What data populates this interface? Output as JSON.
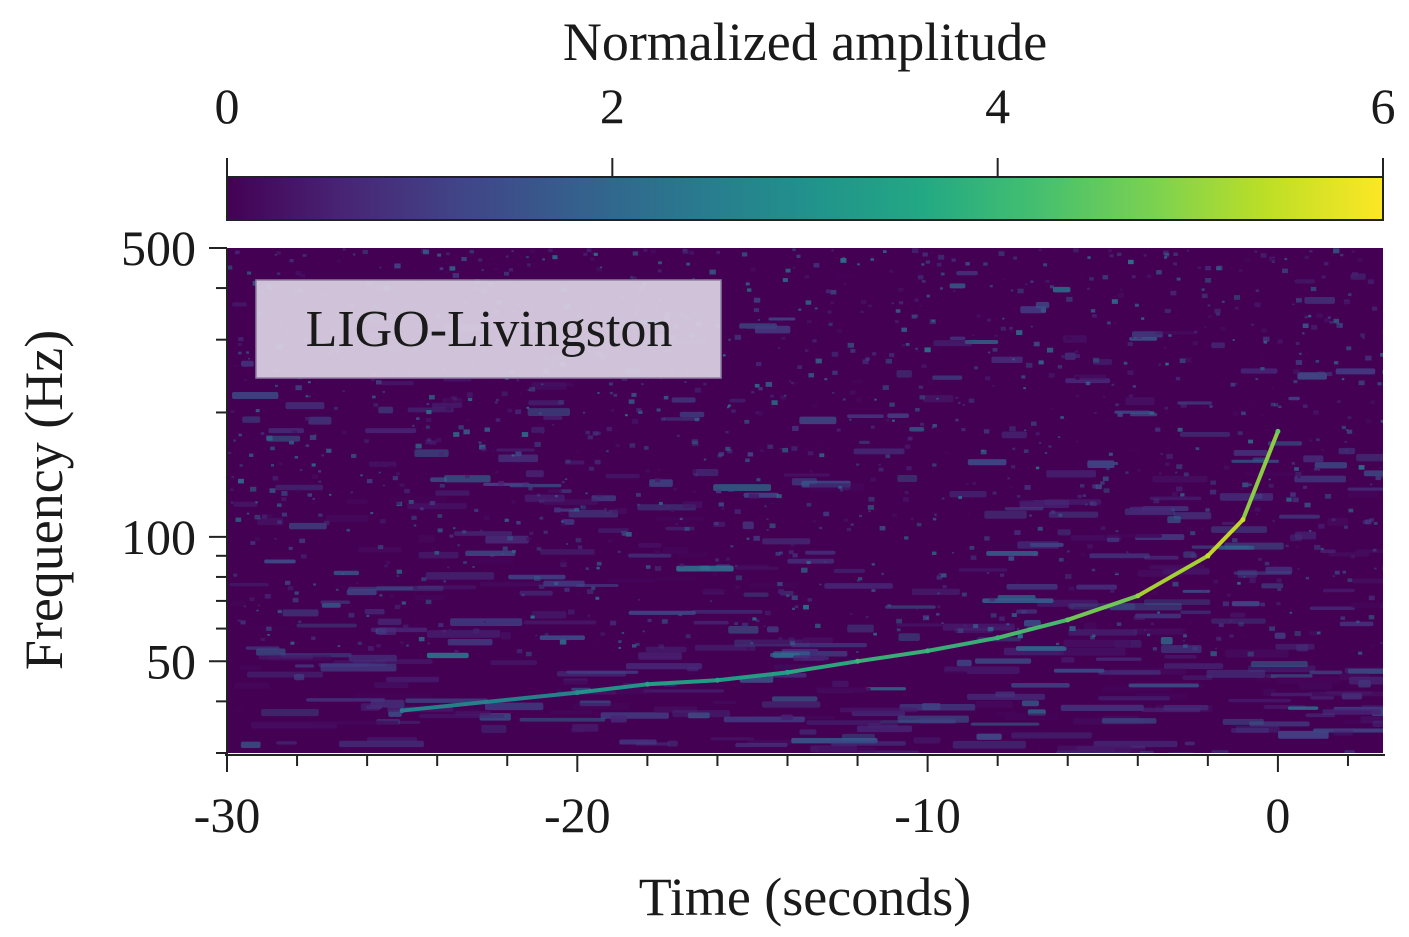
{
  "chart_data": {
    "type": "heatmap",
    "title": "",
    "annotation": "LIGO-Livingston",
    "xlabel": "Time (seconds)",
    "ylabel": "Frequency (Hz)",
    "xlim": [
      -30,
      3
    ],
    "ylim": [
      30,
      500
    ],
    "yscale": "log",
    "x_ticks": [
      -30,
      -20,
      -10,
      0
    ],
    "x_tick_labels": [
      "-30",
      "-20",
      "-10",
      "0"
    ],
    "y_ticks": [
      50,
      100,
      500
    ],
    "y_tick_labels": [
      "50",
      "100",
      "500"
    ],
    "colorbar": {
      "label": "Normalized amplitude",
      "range": [
        0,
        6
      ],
      "ticks": [
        0,
        2,
        4,
        6
      ],
      "tick_labels": [
        "0",
        "2",
        "4",
        "6"
      ],
      "colormap": "viridis",
      "location": "top"
    },
    "signal_track": {
      "description": "chirp",
      "time": [
        -25,
        -20,
        -18,
        -16,
        -14,
        -12,
        -10,
        -8,
        -6,
        -4,
        -2,
        -1,
        0
      ],
      "frequency": [
        38,
        42,
        44,
        45,
        47,
        50,
        53,
        57,
        63,
        72,
        90,
        110,
        180
      ],
      "amplitude": [
        2.5,
        3.0,
        3.5,
        3.5,
        3.5,
        4.0,
        4.0,
        4.0,
        4.5,
        5.0,
        5.5,
        5.5,
        4.5
      ]
    },
    "background_noise_amplitude": [
      0,
      2.5
    ]
  }
}
